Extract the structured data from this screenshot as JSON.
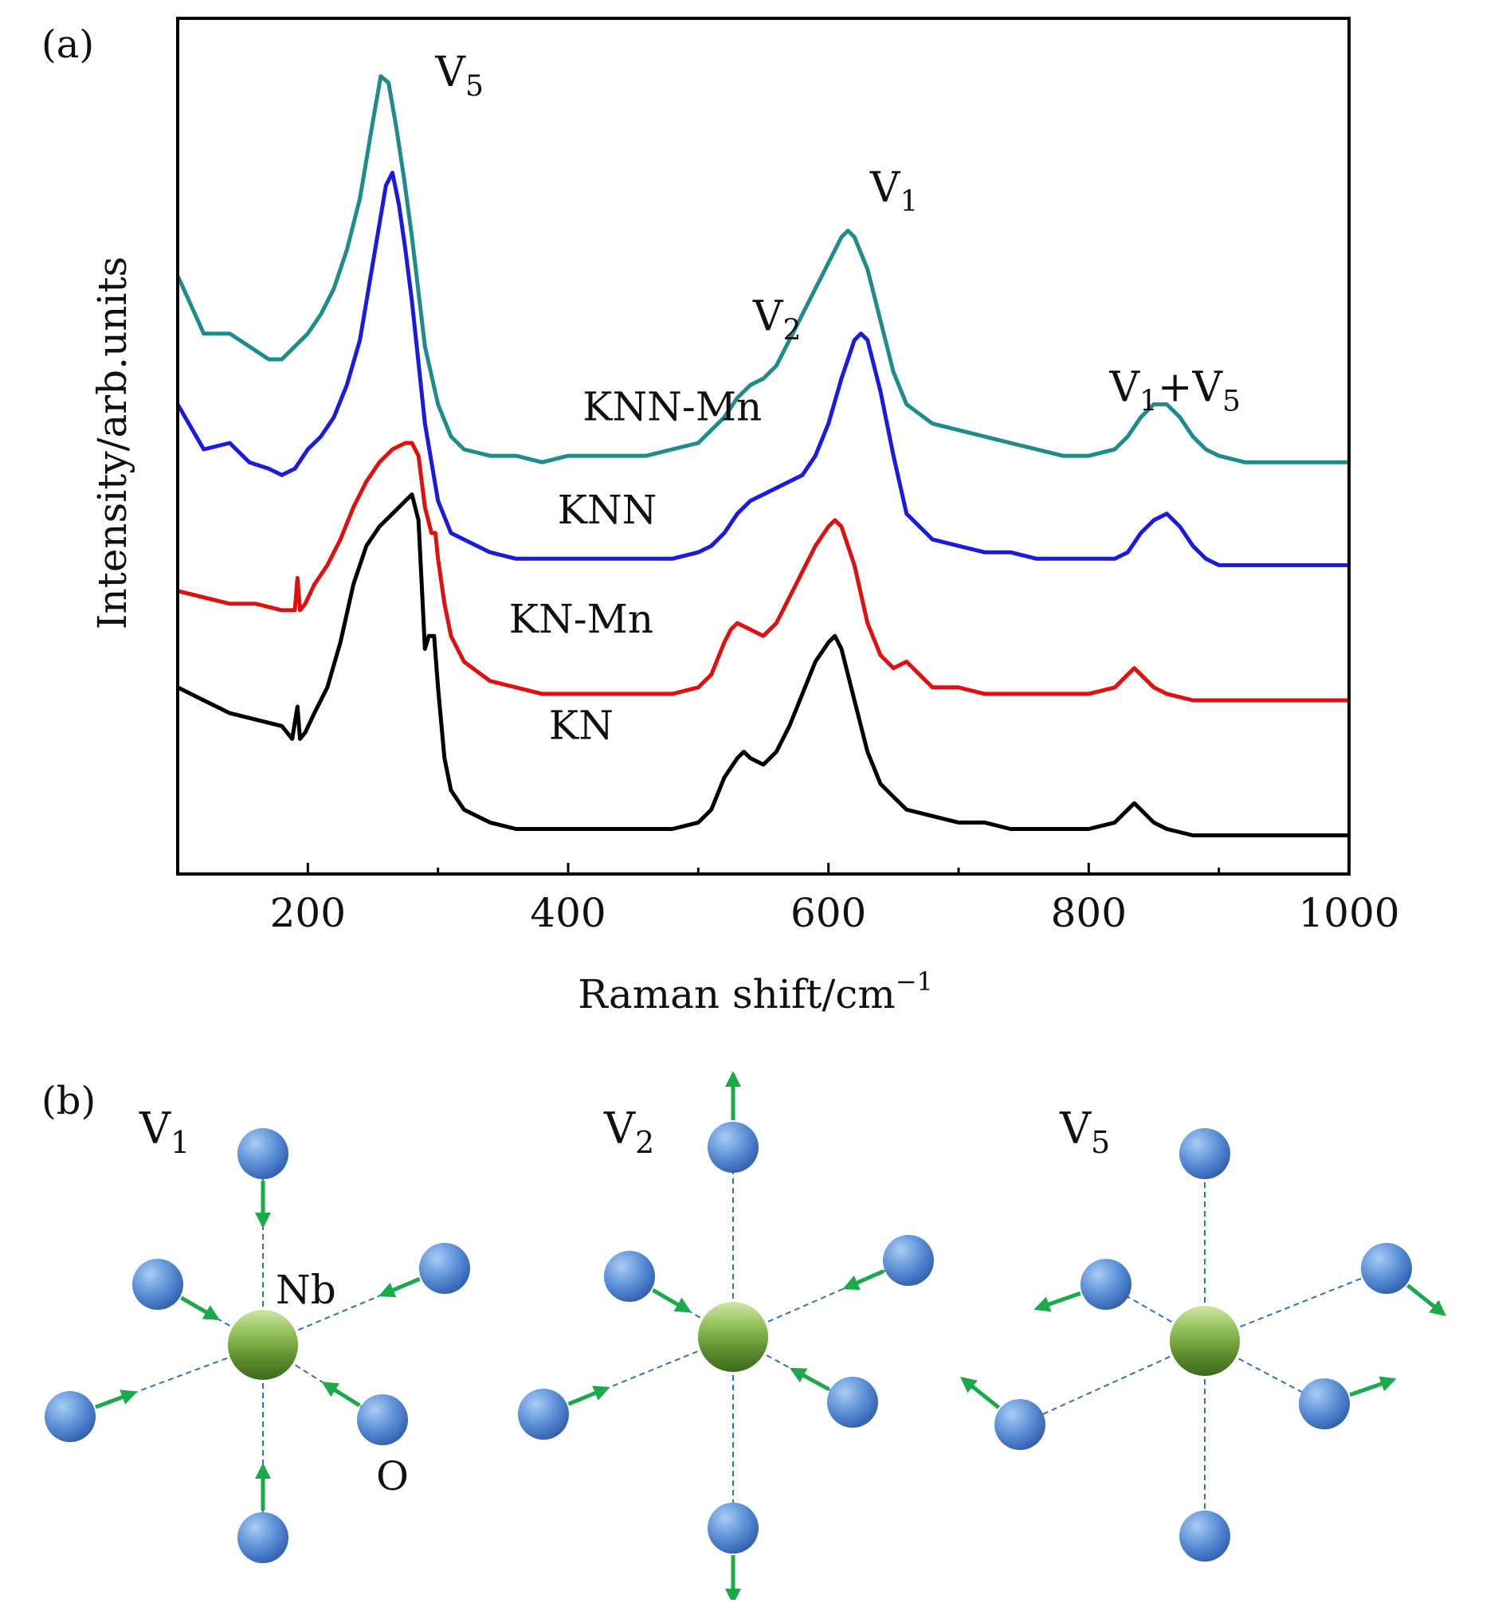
{
  "panels": {
    "a_label": "(a)",
    "b_label": "(b)"
  },
  "chart_data": {
    "type": "line",
    "title": "",
    "xlabel": "Raman shift/cm",
    "xlabel_sup": "−1",
    "ylabel": "Intensity/arb.units",
    "xlim": [
      100,
      1000
    ],
    "x_ticks": [
      200,
      400,
      600,
      800,
      1000
    ],
    "x_minor_ticks": [
      300,
      500,
      700,
      900
    ],
    "y_ticks_shown": false,
    "grid": false,
    "legend": "none (curves labelled inline)",
    "series": [
      {
        "name": "KNN-Mn",
        "color": "#1e8c8c",
        "x": [
          100,
          120,
          140,
          155,
          170,
          180,
          190,
          200,
          210,
          220,
          230,
          240,
          250,
          256,
          262,
          268,
          274,
          280,
          290,
          300,
          310,
          320,
          340,
          360,
          380,
          400,
          420,
          440,
          460,
          480,
          500,
          510,
          520,
          530,
          540,
          550,
          560,
          570,
          580,
          590,
          600,
          610,
          615,
          620,
          630,
          640,
          650,
          660,
          680,
          700,
          720,
          740,
          760,
          780,
          800,
          820,
          830,
          840,
          850,
          860,
          870,
          880,
          890,
          900,
          920,
          950,
          1000
        ],
        "y": [
          0.78,
          0.69,
          0.69,
          0.67,
          0.65,
          0.65,
          0.67,
          0.69,
          0.72,
          0.76,
          0.82,
          0.9,
          1.02,
          1.09,
          1.08,
          1.01,
          0.93,
          0.84,
          0.67,
          0.58,
          0.53,
          0.51,
          0.5,
          0.5,
          0.49,
          0.5,
          0.5,
          0.5,
          0.5,
          0.51,
          0.52,
          0.54,
          0.56,
          0.59,
          0.61,
          0.62,
          0.64,
          0.68,
          0.72,
          0.76,
          0.8,
          0.84,
          0.85,
          0.84,
          0.79,
          0.71,
          0.63,
          0.58,
          0.55,
          0.54,
          0.53,
          0.52,
          0.51,
          0.5,
          0.5,
          0.51,
          0.53,
          0.56,
          0.58,
          0.58,
          0.56,
          0.53,
          0.51,
          0.5,
          0.49,
          0.49,
          0.49
        ]
      },
      {
        "name": "KNN",
        "color": "#1a1ae0",
        "x": [
          100,
          120,
          140,
          155,
          170,
          180,
          190,
          200,
          210,
          220,
          230,
          240,
          250,
          260,
          265,
          270,
          275,
          280,
          290,
          300,
          310,
          320,
          340,
          360,
          380,
          400,
          420,
          440,
          460,
          480,
          500,
          510,
          520,
          530,
          540,
          550,
          560,
          570,
          580,
          590,
          600,
          610,
          620,
          625,
          630,
          640,
          650,
          660,
          680,
          700,
          720,
          740,
          760,
          780,
          800,
          820,
          830,
          840,
          850,
          860,
          870,
          880,
          890,
          900,
          920,
          950,
          1000
        ],
        "y": [
          0.58,
          0.51,
          0.52,
          0.49,
          0.48,
          0.47,
          0.48,
          0.51,
          0.53,
          0.56,
          0.61,
          0.68,
          0.8,
          0.92,
          0.94,
          0.89,
          0.82,
          0.74,
          0.55,
          0.43,
          0.38,
          0.37,
          0.35,
          0.34,
          0.34,
          0.34,
          0.34,
          0.34,
          0.34,
          0.34,
          0.35,
          0.36,
          0.38,
          0.41,
          0.43,
          0.44,
          0.45,
          0.46,
          0.47,
          0.5,
          0.55,
          0.62,
          0.68,
          0.69,
          0.68,
          0.6,
          0.5,
          0.41,
          0.37,
          0.36,
          0.35,
          0.35,
          0.34,
          0.34,
          0.34,
          0.34,
          0.35,
          0.38,
          0.4,
          0.41,
          0.39,
          0.36,
          0.34,
          0.33,
          0.33,
          0.33,
          0.33
        ]
      },
      {
        "name": "KN-Mn",
        "color": "#e01010",
        "x": [
          100,
          120,
          140,
          160,
          180,
          190,
          192,
          194,
          198,
          205,
          215,
          225,
          235,
          245,
          255,
          265,
          275,
          280,
          285,
          290,
          295,
          298,
          300,
          305,
          310,
          320,
          340,
          360,
          380,
          400,
          420,
          440,
          460,
          480,
          500,
          510,
          520,
          525,
          530,
          540,
          550,
          560,
          570,
          580,
          590,
          600,
          605,
          610,
          620,
          630,
          640,
          650,
          660,
          670,
          680,
          700,
          720,
          740,
          760,
          780,
          800,
          820,
          830,
          835,
          840,
          850,
          860,
          880,
          900,
          950,
          1000
        ],
        "y": [
          0.29,
          0.28,
          0.27,
          0.27,
          0.26,
          0.26,
          0.31,
          0.26,
          0.27,
          0.3,
          0.33,
          0.37,
          0.42,
          0.46,
          0.49,
          0.51,
          0.52,
          0.52,
          0.5,
          0.42,
          0.38,
          0.38,
          0.34,
          0.27,
          0.22,
          0.18,
          0.15,
          0.14,
          0.13,
          0.13,
          0.13,
          0.13,
          0.13,
          0.13,
          0.14,
          0.16,
          0.21,
          0.23,
          0.24,
          0.23,
          0.22,
          0.24,
          0.28,
          0.32,
          0.36,
          0.39,
          0.4,
          0.39,
          0.33,
          0.24,
          0.19,
          0.17,
          0.18,
          0.16,
          0.14,
          0.14,
          0.13,
          0.13,
          0.13,
          0.13,
          0.13,
          0.14,
          0.16,
          0.17,
          0.16,
          0.14,
          0.13,
          0.12,
          0.12,
          0.12,
          0.12
        ]
      },
      {
        "name": "KN",
        "color": "#000000",
        "x": [
          100,
          120,
          140,
          160,
          180,
          188,
          192,
          194,
          198,
          205,
          215,
          225,
          235,
          245,
          255,
          265,
          275,
          280,
          285,
          290,
          293,
          297,
          300,
          305,
          310,
          320,
          340,
          360,
          380,
          400,
          420,
          440,
          460,
          480,
          500,
          510,
          520,
          530,
          535,
          540,
          550,
          560,
          570,
          580,
          590,
          600,
          605,
          610,
          620,
          630,
          640,
          650,
          660,
          680,
          700,
          720,
          740,
          760,
          780,
          800,
          820,
          830,
          835,
          840,
          850,
          860,
          880,
          900,
          950,
          1000
        ],
        "y": [
          0.14,
          0.12,
          0.1,
          0.09,
          0.08,
          0.06,
          0.11,
          0.06,
          0.07,
          0.1,
          0.14,
          0.21,
          0.3,
          0.36,
          0.39,
          0.41,
          0.43,
          0.44,
          0.4,
          0.2,
          0.22,
          0.22,
          0.14,
          0.03,
          -0.02,
          -0.05,
          -0.07,
          -0.08,
          -0.08,
          -0.08,
          -0.08,
          -0.08,
          -0.08,
          -0.08,
          -0.07,
          -0.05,
          0.0,
          0.03,
          0.04,
          0.03,
          0.02,
          0.04,
          0.08,
          0.13,
          0.18,
          0.21,
          0.22,
          0.2,
          0.12,
          0.04,
          -0.01,
          -0.03,
          -0.05,
          -0.06,
          -0.07,
          -0.07,
          -0.08,
          -0.08,
          -0.08,
          -0.08,
          -0.07,
          -0.05,
          -0.04,
          -0.05,
          -0.07,
          -0.08,
          -0.09,
          -0.09,
          -0.09,
          -0.09
        ]
      }
    ],
    "series_labels": [
      {
        "name": "KNN-Mn",
        "at_x": 480,
        "at_y": 0.555
      },
      {
        "name": "KNN",
        "at_x": 430,
        "at_y": 0.395
      },
      {
        "name": "KN-Mn",
        "at_x": 410,
        "at_y": 0.225
      },
      {
        "name": "KN",
        "at_x": 410,
        "at_y": 0.06
      }
    ],
    "ylim": [
      -0.15,
      1.18
    ],
    "annotations": [
      {
        "base": "V",
        "sub": "5",
        "at_x": 298,
        "at_y": 1.075
      },
      {
        "base": "V",
        "sub": "2",
        "at_x": 542,
        "at_y": 0.695
      },
      {
        "base": "V",
        "sub": "1",
        "at_x": 632,
        "at_y": 0.895
      },
      {
        "base": "V",
        "sub": "1",
        "mid": "+V",
        "sub2": "5",
        "at_x": 816,
        "at_y": 0.585
      }
    ]
  },
  "diagram_b": {
    "center_atom_label": "Nb",
    "oxygen_label": "O",
    "modes": [
      {
        "label_base": "V",
        "label_sub": "1"
      },
      {
        "label_base": "V",
        "label_sub": "2"
      },
      {
        "label_base": "V",
        "label_sub": "5"
      }
    ],
    "colors": {
      "oxygen": "#5b8fd6",
      "niobium": "#6a9a3a",
      "arrow": "#1aaa4a",
      "bond": "#2d6fcc"
    }
  }
}
